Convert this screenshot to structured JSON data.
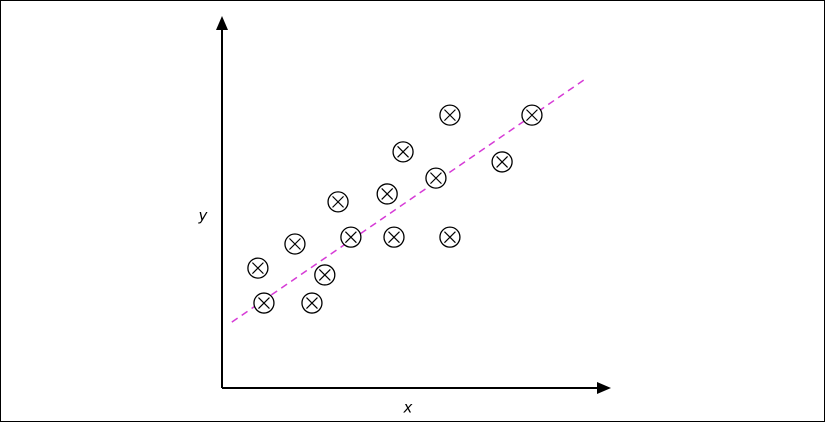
{
  "chart_data": {
    "type": "scatter",
    "xlabel": "x",
    "ylabel": "y",
    "xlim": [
      0,
      100
    ],
    "ylim": [
      0,
      100
    ],
    "color": "#000000",
    "x": [
      9.5,
      11.1,
      19.3,
      23.8,
      27.2,
      30.7,
      34.1,
      43.7,
      45.5,
      47.9,
      56.6,
      60.3,
      60.3,
      74.1,
      82.0
    ],
    "y": [
      33.3,
      23.6,
      40.0,
      23.6,
      31.4,
      51.7,
      41.9,
      53.9,
      41.9,
      65.6,
      58.3,
      75.8,
      41.9,
      62.8,
      75.8
    ],
    "trendline": {
      "x": [
        2.6,
        95.8
      ],
      "y": [
        18.3,
        85.6
      ],
      "color": "#d63bd6"
    }
  }
}
